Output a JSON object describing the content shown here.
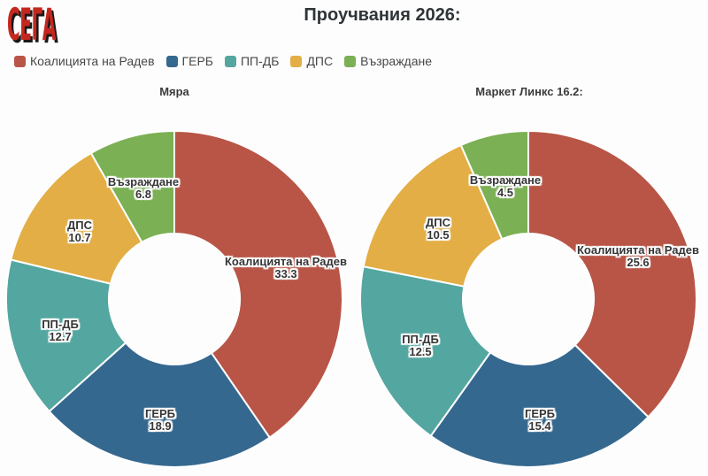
{
  "logo": {
    "text": "СЕГА",
    "color": "#c4271e"
  },
  "title": "Проучвания 2026:",
  "legend": {
    "position": "top-left",
    "items": [
      {
        "label": "Коалицията на Радев",
        "color": "#b85546"
      },
      {
        "label": "ГЕРБ",
        "color": "#35688f"
      },
      {
        "label": "ПП-ДБ",
        "color": "#54a6a0"
      },
      {
        "label": "ДПС",
        "color": "#e3ae45"
      },
      {
        "label": "Възраждане",
        "color": "#7bb055"
      }
    ]
  },
  "chart_data": [
    {
      "type": "pie",
      "subtype": "donut",
      "title": "Мяра",
      "categories": [
        "Коалицията на Радев",
        "ГЕРБ",
        "ПП-ДБ",
        "ДПС",
        "Възраждане"
      ],
      "values": [
        33.3,
        18.9,
        12.7,
        10.7,
        6.8
      ],
      "colors": [
        "#b85546",
        "#35688f",
        "#54a6a0",
        "#e3ae45",
        "#7bb055"
      ],
      "start_angle_deg": 0,
      "direction": "clockwise",
      "normalized_to_total": true,
      "label_positions": [
        [
          323,
          303
        ],
        [
          181,
          475
        ],
        [
          68,
          374
        ],
        [
          90,
          262
        ],
        [
          162,
          213
        ]
      ]
    },
    {
      "type": "pie",
      "subtype": "donut",
      "title": "Маркет Линкс 16.2:",
      "categories": [
        "Коалицията на Радев",
        "ГЕРБ",
        "ПП-ДБ",
        "ДПС",
        "Възраждане"
      ],
      "values": [
        25.6,
        15.4,
        12.5,
        10.5,
        4.5
      ],
      "colors": [
        "#b85546",
        "#35688f",
        "#54a6a0",
        "#e3ae45",
        "#7bb055"
      ],
      "start_angle_deg": 0,
      "direction": "clockwise",
      "normalized_to_total": true,
      "label_positions": [
        [
          721,
          290
        ],
        [
          610,
          475
        ],
        [
          475,
          391
        ],
        [
          495,
          259
        ],
        [
          571,
          211
        ]
      ]
    }
  ]
}
